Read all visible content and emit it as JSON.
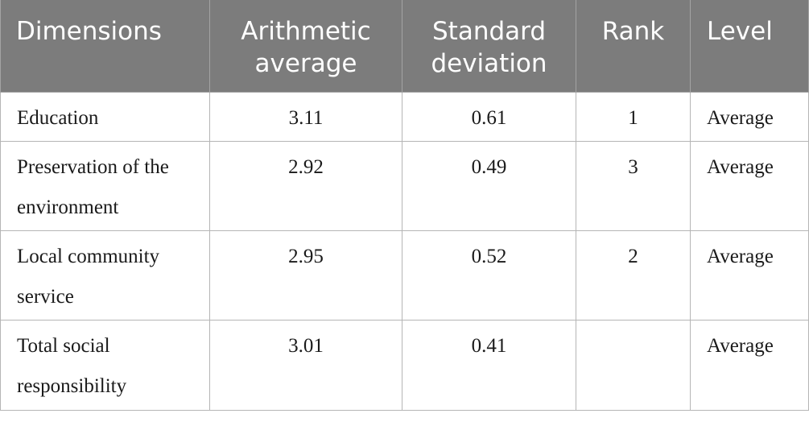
{
  "table": {
    "headers": {
      "dimensions": "Dimensions",
      "arithmetic_average": "Arithmetic average",
      "standard_deviation": "Standard deviation",
      "rank": "Rank",
      "level": "Level"
    },
    "rows": [
      {
        "dimension": "Education",
        "arithmetic_average": "3.11",
        "standard_deviation": "0.61",
        "rank": "1",
        "level": "Average"
      },
      {
        "dimension": "Preservation of the environment",
        "arithmetic_average": "2.92",
        "standard_deviation": "0.49",
        "rank": "3",
        "level": "Average"
      },
      {
        "dimension": "Local community service",
        "arithmetic_average": "2.95",
        "standard_deviation": "0.52",
        "rank": "2",
        "level": "Average"
      },
      {
        "dimension": "Total social responsibility",
        "arithmetic_average": "3.01",
        "standard_deviation": "0.41",
        "rank": "",
        "level": "Average"
      }
    ]
  }
}
